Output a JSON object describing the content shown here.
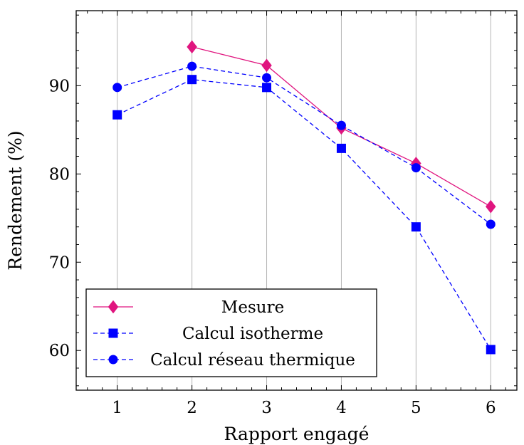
{
  "chart_data": {
    "type": "line",
    "title": "",
    "xlabel": "Rapport engagé",
    "ylabel": "Rendement (%)",
    "x": [
      1,
      2,
      3,
      4,
      5,
      6
    ],
    "xlim": [
      0.45,
      6.35
    ],
    "ylim": [
      55.5,
      98.5
    ],
    "xticks": [
      "1",
      "2",
      "3",
      "4",
      "5",
      "6"
    ],
    "yticks": [
      "60",
      "70",
      "80",
      "90"
    ],
    "grid": "vertical",
    "legend_position": "bottom-left",
    "series": [
      {
        "name": "Mesure",
        "values": [
          null,
          94.4,
          92.3,
          85.2,
          81.2,
          76.3
        ],
        "color": "#e0157f",
        "marker": "diamond",
        "line_style": "solid"
      },
      {
        "name": "Calcul isotherme",
        "values": [
          86.7,
          90.7,
          89.8,
          82.9,
          74.0,
          60.1
        ],
        "color": "#0000ff",
        "marker": "square",
        "line_style": "dashed"
      },
      {
        "name": "Calcul réseau thermique",
        "values": [
          89.8,
          92.2,
          90.9,
          85.5,
          80.7,
          74.3
        ],
        "color": "#0000ff",
        "marker": "circle",
        "line_style": "dashed"
      }
    ]
  }
}
